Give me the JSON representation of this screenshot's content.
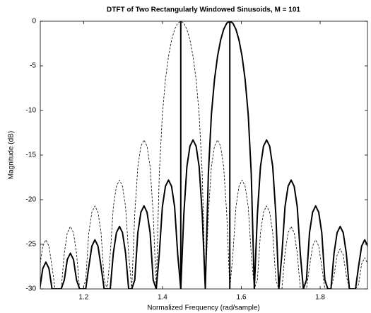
{
  "chart_data": {
    "type": "line",
    "title": "DTFT of Two Rectangularly Windowed Sinusoids, M = 101",
    "xlabel": "Normalized Frequency (rad/sample)",
    "ylabel": "Magnitude (dB)",
    "xlim": [
      1.09,
      1.92
    ],
    "xticks": [
      1.2,
      1.4,
      1.6,
      1.8
    ],
    "ylim": [
      -30,
      0
    ],
    "yticks": [
      0,
      -5,
      -10,
      -15,
      -20,
      -25,
      -30
    ],
    "grid": false,
    "x": [
      1.0887,
      1.0964,
      1.1042,
      1.112,
      1.1198,
      1.1275,
      1.1353,
      1.1431,
      1.1509,
      1.1586,
      1.1664,
      1.1742,
      1.182,
      1.1898,
      1.1975,
      1.2053,
      1.2131,
      1.2209,
      1.2286,
      1.2364,
      1.2442,
      1.252,
      1.2597,
      1.2675,
      1.2753,
      1.2831,
      1.2909,
      1.2986,
      1.3064,
      1.3142,
      1.322,
      1.3297,
      1.3375,
      1.3453,
      1.3531,
      1.3608,
      1.3686,
      1.3764,
      1.3842,
      1.3919,
      1.3997,
      1.4075,
      1.4153,
      1.423,
      1.4308,
      1.4386,
      1.4464,
      1.4542,
      1.4619,
      1.4697,
      1.4775,
      1.4853,
      1.493,
      1.5008,
      1.5086,
      1.5164,
      1.5241,
      1.5319,
      1.5397,
      1.5475,
      1.5552,
      1.563,
      1.5708,
      1.5786,
      1.5864,
      1.5941,
      1.6019,
      1.6097,
      1.6175,
      1.6252,
      1.633,
      1.6408,
      1.6486,
      1.6563,
      1.6641,
      1.6719,
      1.6797,
      1.6875,
      1.6952,
      1.703,
      1.7108,
      1.7186,
      1.7263,
      1.7341,
      1.7419,
      1.7497,
      1.7574,
      1.7652,
      1.773,
      1.7808,
      1.7885,
      1.7963,
      1.8041,
      1.8119,
      1.8196,
      1.8274,
      1.8352,
      1.843,
      1.8508,
      1.8585,
      1.8663,
      1.8741,
      1.8819,
      1.8896,
      1.8974,
      1.9052,
      1.913,
      1.9207,
      1.9285
    ],
    "series": [
      {
        "color": "#000000",
        "style": "solid",
        "values": [
          -30,
          -27.7,
          -27,
          -27.7,
          -30,
          -30,
          -30,
          -30,
          -29,
          -26.7,
          -26,
          -26.7,
          -29,
          -30,
          -30,
          -30,
          -27.5,
          -25.2,
          -24.5,
          -25.2,
          -27.5,
          -30,
          -30,
          -30,
          -26,
          -23.7,
          -23,
          -23.7,
          -26,
          -30,
          -30,
          -29,
          -23.7,
          -21.4,
          -20.7,
          -21.4,
          -23.7,
          -29,
          -30,
          -26.1,
          -20.8,
          -18.5,
          -17.8,
          -18.5,
          -20.8,
          -26.1,
          -30,
          -21.6,
          -16.3,
          -14,
          -13.3,
          -14,
          -16.3,
          -21.6,
          -30,
          -17.1,
          -10.45,
          -6.55,
          -3.92,
          -2.11,
          -0.91,
          -0.22,
          0,
          -0.22,
          -0.91,
          -2.11,
          -3.92,
          -6.55,
          -10.45,
          -17.1,
          -30,
          -21.6,
          -16.3,
          -14,
          -13.3,
          -14,
          -16.3,
          -21.6,
          -30,
          -26.1,
          -20.8,
          -18.5,
          -17.8,
          -18.5,
          -20.8,
          -26.1,
          -30,
          -29,
          -23.7,
          -21.4,
          -20.7,
          -21.4,
          -23.7,
          -29,
          -30,
          -30,
          -26,
          -23.7,
          -23,
          -23.7,
          -26,
          -30,
          -30,
          -30,
          -27.5,
          -25.2,
          -24.5,
          -25.2,
          -27.5
        ]
      },
      {
        "color": "#000000",
        "style": "dashed",
        "values": [
          -27.5,
          -25.2,
          -24.5,
          -25.2,
          -27.5,
          -30,
          -30,
          -30,
          -26,
          -23.7,
          -23,
          -23.7,
          -26,
          -30,
          -30,
          -29,
          -23.7,
          -21.4,
          -20.7,
          -21.4,
          -23.7,
          -29,
          -30,
          -26.1,
          -20.8,
          -18.5,
          -17.8,
          -18.5,
          -20.8,
          -26.1,
          -30,
          -21.6,
          -16.3,
          -14,
          -13.3,
          -14,
          -16.3,
          -21.6,
          -30,
          -17.1,
          -10.45,
          -6.55,
          -3.92,
          -2.11,
          -0.91,
          -0.22,
          0,
          -0.22,
          -0.91,
          -2.11,
          -3.92,
          -6.55,
          -10.45,
          -17.1,
          -30,
          -21.6,
          -16.3,
          -14,
          -13.3,
          -14,
          -16.3,
          -21.6,
          -30,
          -26.1,
          -20.8,
          -18.5,
          -17.8,
          -18.5,
          -20.8,
          -26.1,
          -30,
          -29,
          -23.7,
          -21.4,
          -20.7,
          -21.4,
          -23.7,
          -29,
          -30,
          -30,
          -26,
          -23.7,
          -23,
          -23.7,
          -26,
          -30,
          -30,
          -30,
          -27.5,
          -25.2,
          -24.5,
          -25.2,
          -27.5,
          -30,
          -30,
          -30,
          -28.5,
          -26.2,
          -25.5,
          -26.2,
          -28.5,
          -30,
          -30,
          -30,
          -29.5,
          -27.2,
          -26.5,
          -27.2,
          -29.5
        ]
      }
    ],
    "stems": {
      "color": "#000000",
      "x": [
        1.4464,
        1.5708
      ],
      "values": [
        0,
        0
      ]
    }
  }
}
